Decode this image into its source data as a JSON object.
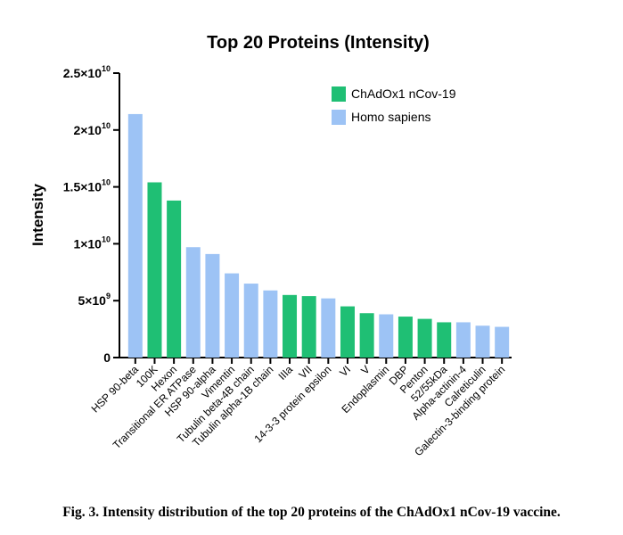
{
  "chart_data": {
    "type": "bar",
    "title": "Top 20 Proteins (Intensity)",
    "ylabel": "Intensity",
    "xlabel": "",
    "ylim": [
      0,
      25000000000
    ],
    "yticks": [
      {
        "value": 0,
        "base": "0",
        "exp": ""
      },
      {
        "value": 5000000000,
        "base": "5×10",
        "exp": "9"
      },
      {
        "value": 10000000000,
        "base": "1×10",
        "exp": "10"
      },
      {
        "value": 15000000000,
        "base": "1.5×10",
        "exp": "10"
      },
      {
        "value": 20000000000,
        "base": "2×10",
        "exp": "10"
      },
      {
        "value": 25000000000,
        "base": "2.5×10",
        "exp": "10"
      }
    ],
    "legend_position": "top-right",
    "series": [
      {
        "name": "ChAdOx1 nCov-19",
        "color": "#1fbf74"
      },
      {
        "name": "Homo sapiens",
        "color": "#9dc3f5"
      }
    ],
    "categories": [
      "HSP 90-beta",
      "100K",
      "Hexon",
      "Transitional ER ATPase",
      "HSP 90-alpha",
      "Vimentin",
      "Tubulin beta-4B chain",
      "Tubulin alpha-1B chain",
      "IIIa",
      "VII",
      "14-3-3 protein epsilon",
      "VI",
      "V",
      "Endoplasmin",
      "DBP",
      "Penton",
      "52/55kDa",
      "Alpha-actinin-4",
      "Calreticulin",
      "Galectin-3-binding protein"
    ],
    "values": [
      21400000000,
      15400000000,
      13800000000,
      9700000000,
      9100000000,
      7400000000,
      6500000000,
      5900000000,
      5500000000,
      5400000000,
      5200000000,
      4500000000,
      3900000000,
      3800000000,
      3600000000,
      3400000000,
      3100000000,
      3100000000,
      2800000000,
      2700000000
    ],
    "groups": [
      1,
      0,
      0,
      1,
      1,
      1,
      1,
      1,
      0,
      0,
      1,
      0,
      0,
      1,
      0,
      0,
      0,
      1,
      1,
      1
    ]
  },
  "caption": "Fig. 3. Intensity distribution of the top 20 proteins of the ChAdOx1 nCov-19 vaccine."
}
